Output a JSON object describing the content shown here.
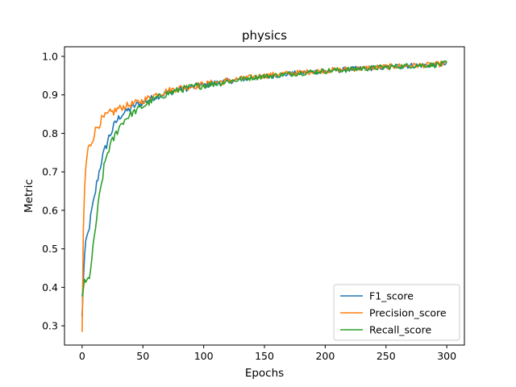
{
  "chart_data": {
    "type": "line",
    "title": "physics",
    "xlabel": "Epochs",
    "ylabel": "Metric",
    "xlim": [
      -14.5,
      314.5
    ],
    "ylim": [
      0.25,
      1.025
    ],
    "xticks": [
      0,
      50,
      100,
      150,
      200,
      250,
      300
    ],
    "yticks": [
      0.3,
      0.4,
      0.5,
      0.6,
      0.7,
      0.8,
      0.9,
      1.0
    ],
    "xtick_labels": [
      "0",
      "50",
      "100",
      "150",
      "200",
      "250",
      "300"
    ],
    "ytick_labels": [
      "0.3",
      "0.4",
      "0.5",
      "0.6",
      "0.7",
      "0.8",
      "0.9",
      "1.0"
    ],
    "grid": false,
    "legend_position": "lower-right",
    "series": [
      {
        "name": "F1_score",
        "color": "#1f77b4",
        "x": [
          0,
          1,
          2,
          3,
          4,
          5,
          6,
          8,
          10,
          12,
          14,
          16,
          18,
          20,
          22,
          25,
          28,
          30,
          35,
          40,
          45,
          50,
          60,
          70,
          80,
          90,
          100,
          110,
          120,
          130,
          140,
          150,
          160,
          170,
          180,
          190,
          200,
          210,
          220,
          230,
          240,
          250,
          260,
          270,
          280,
          290,
          300
        ],
        "y": [
          0.32,
          0.42,
          0.48,
          0.51,
          0.53,
          0.54,
          0.56,
          0.6,
          0.63,
          0.67,
          0.7,
          0.73,
          0.75,
          0.77,
          0.79,
          0.81,
          0.83,
          0.84,
          0.855,
          0.865,
          0.875,
          0.88,
          0.895,
          0.905,
          0.915,
          0.92,
          0.925,
          0.93,
          0.935,
          0.94,
          0.945,
          0.948,
          0.951,
          0.954,
          0.957,
          0.96,
          0.962,
          0.964,
          0.966,
          0.968,
          0.97,
          0.972,
          0.974,
          0.976,
          0.977,
          0.978,
          0.98
        ]
      },
      {
        "name": "Precision_score",
        "color": "#ff7f0e",
        "x": [
          0,
          1,
          2,
          3,
          4,
          5,
          6,
          8,
          10,
          12,
          14,
          16,
          18,
          20,
          22,
          25,
          28,
          30,
          35,
          40,
          45,
          50,
          60,
          70,
          80,
          90,
          100,
          110,
          120,
          130,
          140,
          150,
          160,
          170,
          180,
          190,
          200,
          210,
          220,
          230,
          240,
          250,
          260,
          270,
          280,
          290,
          300
        ],
        "y": [
          0.28,
          0.55,
          0.65,
          0.71,
          0.74,
          0.76,
          0.765,
          0.78,
          0.8,
          0.815,
          0.825,
          0.835,
          0.84,
          0.845,
          0.85,
          0.855,
          0.86,
          0.865,
          0.87,
          0.875,
          0.88,
          0.885,
          0.9,
          0.91,
          0.918,
          0.922,
          0.927,
          0.932,
          0.937,
          0.942,
          0.946,
          0.95,
          0.953,
          0.956,
          0.958,
          0.961,
          0.963,
          0.965,
          0.967,
          0.969,
          0.971,
          0.973,
          0.975,
          0.976,
          0.977,
          0.979,
          0.981
        ]
      },
      {
        "name": "Recall_score",
        "color": "#2ca02c",
        "x": [
          0,
          1,
          2,
          3,
          4,
          5,
          6,
          8,
          10,
          12,
          14,
          16,
          18,
          20,
          22,
          25,
          28,
          30,
          35,
          40,
          45,
          50,
          60,
          70,
          80,
          90,
          100,
          110,
          120,
          130,
          140,
          150,
          160,
          170,
          180,
          190,
          200,
          210,
          220,
          230,
          240,
          250,
          260,
          270,
          280,
          290,
          300
        ],
        "y": [
          0.38,
          0.4,
          0.41,
          0.41,
          0.415,
          0.42,
          0.43,
          0.47,
          0.53,
          0.58,
          0.63,
          0.67,
          0.71,
          0.74,
          0.76,
          0.78,
          0.8,
          0.815,
          0.835,
          0.85,
          0.86,
          0.87,
          0.89,
          0.903,
          0.913,
          0.92,
          0.925,
          0.93,
          0.935,
          0.94,
          0.945,
          0.948,
          0.951,
          0.954,
          0.957,
          0.96,
          0.962,
          0.964,
          0.966,
          0.968,
          0.97,
          0.972,
          0.974,
          0.976,
          0.977,
          0.978,
          0.982
        ]
      }
    ]
  }
}
